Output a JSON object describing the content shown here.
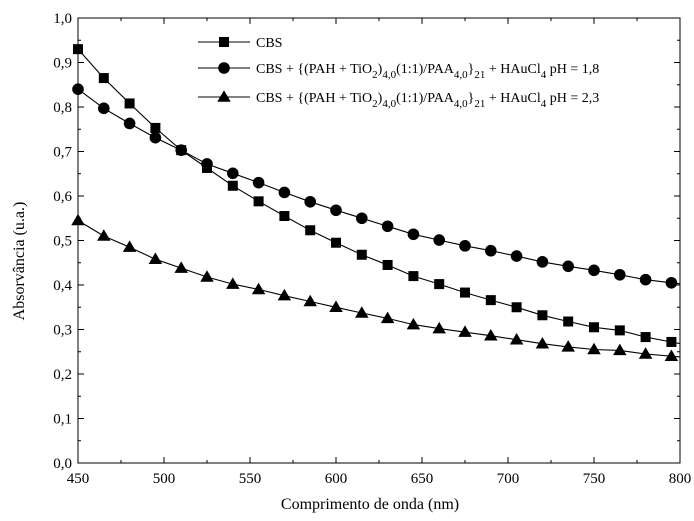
{
  "chart_data": {
    "type": "line",
    "xlabel": "Comprimento de onda (nm)",
    "ylabel": "Absorvância (u.a.)",
    "xlim": [
      450,
      800
    ],
    "ylim": [
      0.0,
      1.0
    ],
    "x_ticks": [
      "450",
      "500",
      "550",
      "600",
      "650",
      "700",
      "750",
      "800"
    ],
    "y_ticks": [
      "0,0",
      "0,1",
      "0,2",
      "0,3",
      "0,4",
      "0,5",
      "0,6",
      "0,7",
      "0,8",
      "0,9",
      "1,0"
    ],
    "legend_position": "top-center",
    "series": [
      {
        "legend_parts": [
          "CBS"
        ],
        "marker": "square",
        "x": [
          450,
          465,
          480,
          495,
          510,
          525,
          540,
          555,
          570,
          585,
          600,
          615,
          630,
          645,
          660,
          675,
          690,
          705,
          720,
          735,
          750,
          765,
          780,
          795
        ],
        "values": [
          0.93,
          0.865,
          0.808,
          0.753,
          0.703,
          0.663,
          0.623,
          0.588,
          0.555,
          0.523,
          0.495,
          0.468,
          0.445,
          0.42,
          0.402,
          0.383,
          0.366,
          0.35,
          0.332,
          0.318,
          0.305,
          0.298,
          0.283,
          0.272
        ]
      },
      {
        "legend_parts": [
          "CBS + {(PAH + TiO",
          "2",
          ")",
          "4,0",
          "(1:1)/PAA",
          "4,0",
          "}",
          "21",
          " + HAuCl",
          "4",
          " pH = 1,8"
        ],
        "marker": "circle",
        "x": [
          450,
          465,
          480,
          495,
          510,
          525,
          540,
          555,
          570,
          585,
          600,
          615,
          630,
          645,
          660,
          675,
          690,
          705,
          720,
          735,
          750,
          765,
          780,
          795
        ],
        "values": [
          0.84,
          0.797,
          0.763,
          0.731,
          0.703,
          0.672,
          0.651,
          0.63,
          0.608,
          0.587,
          0.568,
          0.55,
          0.532,
          0.514,
          0.501,
          0.488,
          0.477,
          0.465,
          0.452,
          0.442,
          0.433,
          0.423,
          0.412,
          0.405
        ]
      },
      {
        "legend_parts": [
          "CBS + {(PAH + TiO",
          "2",
          ")",
          "4,0",
          "(1:1)/PAA",
          "4,0",
          "}",
          "21",
          " + HAuCl",
          "4",
          " pH = 2,3"
        ],
        "marker": "triangle",
        "x": [
          450,
          465,
          480,
          495,
          510,
          525,
          540,
          555,
          570,
          585,
          600,
          615,
          630,
          645,
          660,
          675,
          690,
          705,
          720,
          735,
          750,
          765,
          780,
          795
        ],
        "values": [
          0.545,
          0.51,
          0.485,
          0.458,
          0.438,
          0.418,
          0.402,
          0.39,
          0.376,
          0.363,
          0.35,
          0.337,
          0.325,
          0.311,
          0.302,
          0.294,
          0.286,
          0.277,
          0.268,
          0.261,
          0.255,
          0.253,
          0.245,
          0.24
        ]
      }
    ]
  }
}
